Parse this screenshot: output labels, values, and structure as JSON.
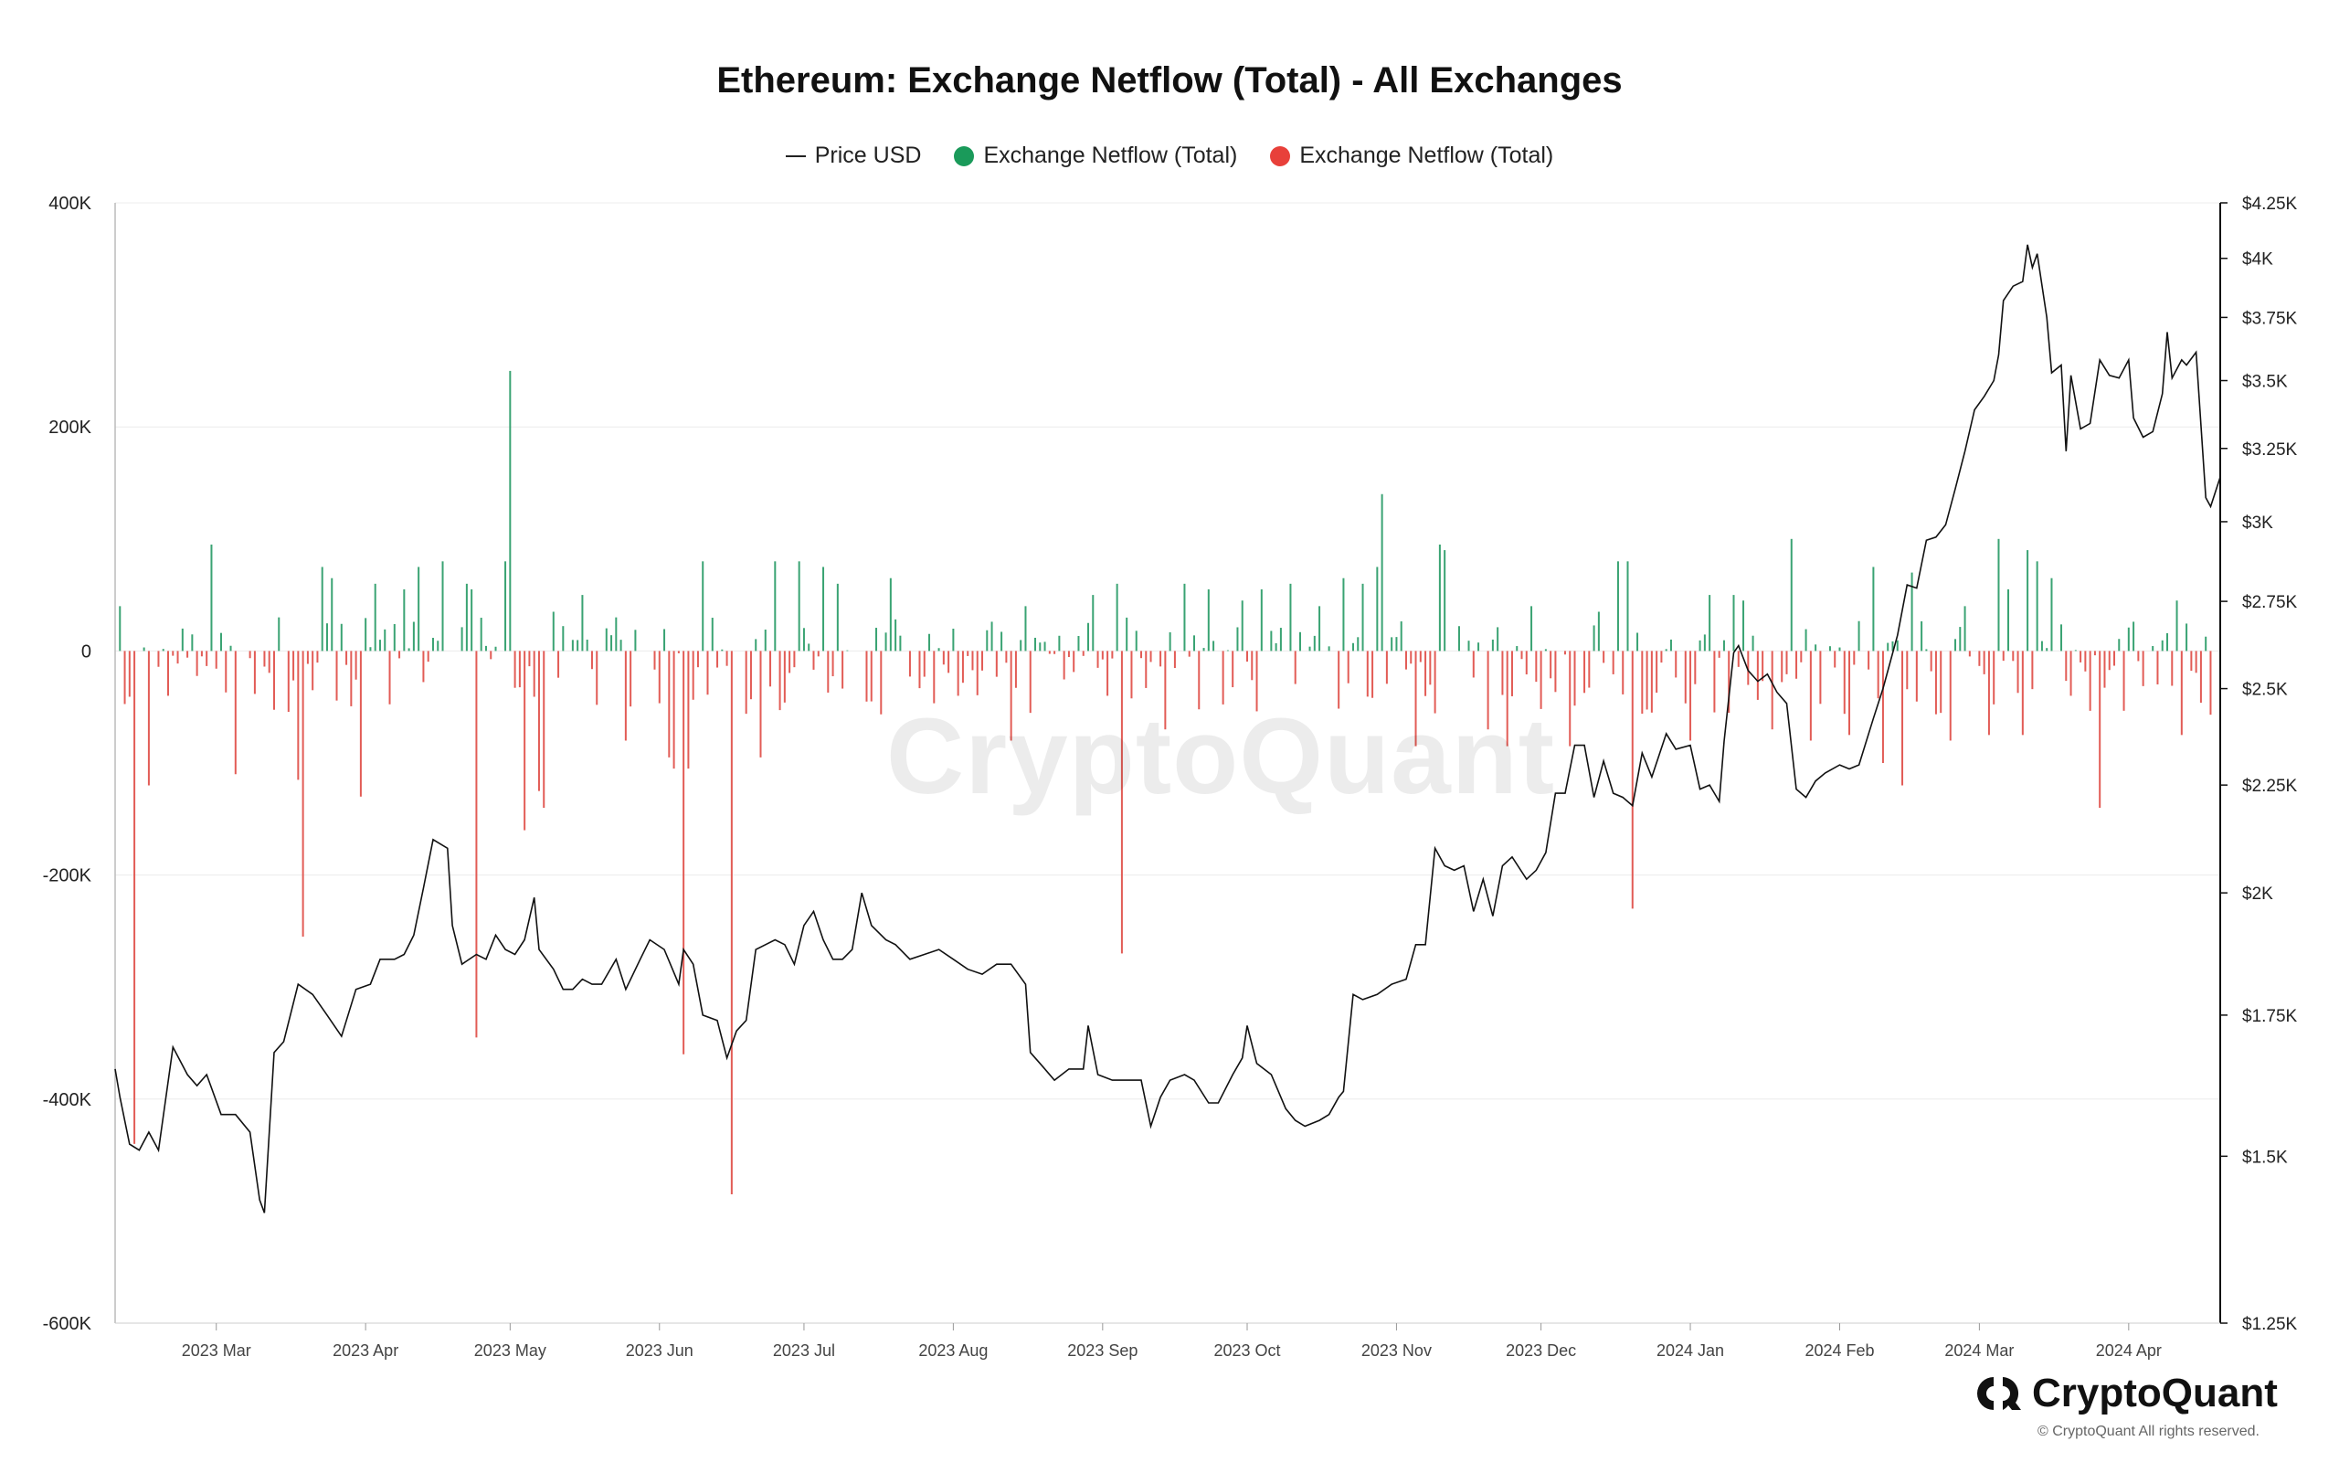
{
  "chart_data": {
    "type": "line+bar",
    "title": "Ethereum: Exchange Netflow (Total) - All Exchanges",
    "legend": [
      {
        "name": "Price USD",
        "kind": "line",
        "color": "#222222"
      },
      {
        "name": "Exchange Netflow (Total)",
        "kind": "dot",
        "color": "#1a9a5a"
      },
      {
        "name": "Exchange Netflow (Total)",
        "kind": "dot",
        "color": "#e8403a"
      }
    ],
    "colors": {
      "inflow": "#3aa373",
      "outflow": "#e25c56",
      "price": "#111111"
    },
    "left_axis": {
      "min": -600000,
      "max": 400000,
      "ticks": [
        {
          "v": 400000,
          "label": "400K"
        },
        {
          "v": 200000,
          "label": "200K"
        },
        {
          "v": 0,
          "label": "0"
        },
        {
          "v": -200000,
          "label": "-200K"
        },
        {
          "v": -400000,
          "label": "-400K"
        },
        {
          "v": -600000,
          "label": "-600K"
        }
      ]
    },
    "right_axis": {
      "scale": "log",
      "min": 1250,
      "max": 4250,
      "ticks": [
        {
          "v": 4250,
          "label": "$4.25K"
        },
        {
          "v": 4000,
          "label": "$4K"
        },
        {
          "v": 3750,
          "label": "$3.75K"
        },
        {
          "v": 3500,
          "label": "$3.5K"
        },
        {
          "v": 3250,
          "label": "$3.25K"
        },
        {
          "v": 3000,
          "label": "$3K"
        },
        {
          "v": 2750,
          "label": "$2.75K"
        },
        {
          "v": 2500,
          "label": "$2.5K"
        },
        {
          "v": 2250,
          "label": "$2.25K"
        },
        {
          "v": 2000,
          "label": "$2K"
        },
        {
          "v": 1750,
          "label": "$1.75K"
        },
        {
          "v": 1500,
          "label": "$1.5K"
        },
        {
          "v": 1250,
          "label": "$1.25K"
        }
      ]
    },
    "x_axis": {
      "start": "2023-02-08",
      "end": "2024-04-20",
      "ticks": [
        {
          "date": "2023-03-01",
          "label": "2023 Mar"
        },
        {
          "date": "2023-04-01",
          "label": "2023 Apr"
        },
        {
          "date": "2023-05-01",
          "label": "2023 May"
        },
        {
          "date": "2023-06-01",
          "label": "2023 Jun"
        },
        {
          "date": "2023-07-01",
          "label": "2023 Jul"
        },
        {
          "date": "2023-08-01",
          "label": "2023 Aug"
        },
        {
          "date": "2023-09-01",
          "label": "2023 Sep"
        },
        {
          "date": "2023-10-01",
          "label": "2023 Oct"
        },
        {
          "date": "2023-11-01",
          "label": "2023 Nov"
        },
        {
          "date": "2023-12-01",
          "label": "2023 Dec"
        },
        {
          "date": "2024-01-01",
          "label": "2024 Jan"
        },
        {
          "date": "2024-02-01",
          "label": "2024 Feb"
        },
        {
          "date": "2024-03-01",
          "label": "2024 Mar"
        },
        {
          "date": "2024-04-01",
          "label": "2024 Apr"
        }
      ]
    },
    "grid": true,
    "price_usd": [
      [
        "2023-02-08",
        1650
      ],
      [
        "2023-02-09",
        1600
      ],
      [
        "2023-02-11",
        1520
      ],
      [
        "2023-02-13",
        1510
      ],
      [
        "2023-02-15",
        1540
      ],
      [
        "2023-02-17",
        1510
      ],
      [
        "2023-02-20",
        1690
      ],
      [
        "2023-02-23",
        1640
      ],
      [
        "2023-02-25",
        1620
      ],
      [
        "2023-02-27",
        1640
      ],
      [
        "2023-03-02",
        1570
      ],
      [
        "2023-03-05",
        1570
      ],
      [
        "2023-03-08",
        1540
      ],
      [
        "2023-03-10",
        1430
      ],
      [
        "2023-03-11",
        1410
      ],
      [
        "2023-03-13",
        1680
      ],
      [
        "2023-03-15",
        1700
      ],
      [
        "2023-03-18",
        1810
      ],
      [
        "2023-03-21",
        1790
      ],
      [
        "2023-03-24",
        1750
      ],
      [
        "2023-03-27",
        1710
      ],
      [
        "2023-03-30",
        1800
      ],
      [
        "2023-04-02",
        1810
      ],
      [
        "2023-04-04",
        1860
      ],
      [
        "2023-04-07",
        1860
      ],
      [
        "2023-04-09",
        1870
      ],
      [
        "2023-04-11",
        1910
      ],
      [
        "2023-04-13",
        2010
      ],
      [
        "2023-04-15",
        2120
      ],
      [
        "2023-04-18",
        2100
      ],
      [
        "2023-04-19",
        1930
      ],
      [
        "2023-04-21",
        1850
      ],
      [
        "2023-04-24",
        1870
      ],
      [
        "2023-04-26",
        1860
      ],
      [
        "2023-04-28",
        1910
      ],
      [
        "2023-04-30",
        1880
      ],
      [
        "2023-05-02",
        1870
      ],
      [
        "2023-05-04",
        1900
      ],
      [
        "2023-05-06",
        1990
      ],
      [
        "2023-05-07",
        1880
      ],
      [
        "2023-05-10",
        1840
      ],
      [
        "2023-05-12",
        1800
      ],
      [
        "2023-05-14",
        1800
      ],
      [
        "2023-05-16",
        1820
      ],
      [
        "2023-05-18",
        1810
      ],
      [
        "2023-05-20",
        1810
      ],
      [
        "2023-05-23",
        1860
      ],
      [
        "2023-05-25",
        1800
      ],
      [
        "2023-05-28",
        1860
      ],
      [
        "2023-05-30",
        1900
      ],
      [
        "2023-06-02",
        1880
      ],
      [
        "2023-06-05",
        1810
      ],
      [
        "2023-06-06",
        1880
      ],
      [
        "2023-06-08",
        1850
      ],
      [
        "2023-06-10",
        1750
      ],
      [
        "2023-06-13",
        1740
      ],
      [
        "2023-06-15",
        1670
      ],
      [
        "2023-06-17",
        1720
      ],
      [
        "2023-06-19",
        1740
      ],
      [
        "2023-06-21",
        1880
      ],
      [
        "2023-06-23",
        1890
      ],
      [
        "2023-06-25",
        1900
      ],
      [
        "2023-06-27",
        1890
      ],
      [
        "2023-06-29",
        1850
      ],
      [
        "2023-07-01",
        1930
      ],
      [
        "2023-07-03",
        1960
      ],
      [
        "2023-07-05",
        1900
      ],
      [
        "2023-07-07",
        1860
      ],
      [
        "2023-07-09",
        1860
      ],
      [
        "2023-07-11",
        1880
      ],
      [
        "2023-07-13",
        2000
      ],
      [
        "2023-07-15",
        1930
      ],
      [
        "2023-07-18",
        1900
      ],
      [
        "2023-07-20",
        1890
      ],
      [
        "2023-07-23",
        1860
      ],
      [
        "2023-07-26",
        1870
      ],
      [
        "2023-07-29",
        1880
      ],
      [
        "2023-08-01",
        1860
      ],
      [
        "2023-08-04",
        1840
      ],
      [
        "2023-08-07",
        1830
      ],
      [
        "2023-08-10",
        1850
      ],
      [
        "2023-08-13",
        1850
      ],
      [
        "2023-08-16",
        1810
      ],
      [
        "2023-08-17",
        1680
      ],
      [
        "2023-08-19",
        1660
      ],
      [
        "2023-08-22",
        1630
      ],
      [
        "2023-08-25",
        1650
      ],
      [
        "2023-08-28",
        1650
      ],
      [
        "2023-08-29",
        1730
      ],
      [
        "2023-08-31",
        1640
      ],
      [
        "2023-09-03",
        1630
      ],
      [
        "2023-09-06",
        1630
      ],
      [
        "2023-09-09",
        1630
      ],
      [
        "2023-09-11",
        1550
      ],
      [
        "2023-09-13",
        1600
      ],
      [
        "2023-09-15",
        1630
      ],
      [
        "2023-09-18",
        1640
      ],
      [
        "2023-09-20",
        1630
      ],
      [
        "2023-09-23",
        1590
      ],
      [
        "2023-09-25",
        1590
      ],
      [
        "2023-09-28",
        1640
      ],
      [
        "2023-09-30",
        1670
      ],
      [
        "2023-10-01",
        1730
      ],
      [
        "2023-10-03",
        1660
      ],
      [
        "2023-10-06",
        1640
      ],
      [
        "2023-10-09",
        1580
      ],
      [
        "2023-10-11",
        1560
      ],
      [
        "2023-10-13",
        1550
      ],
      [
        "2023-10-16",
        1560
      ],
      [
        "2023-10-18",
        1570
      ],
      [
        "2023-10-20",
        1600
      ],
      [
        "2023-10-21",
        1610
      ],
      [
        "2023-10-23",
        1790
      ],
      [
        "2023-10-25",
        1780
      ],
      [
        "2023-10-28",
        1790
      ],
      [
        "2023-10-31",
        1810
      ],
      [
        "2023-11-03",
        1820
      ],
      [
        "2023-11-05",
        1890
      ],
      [
        "2023-11-07",
        1890
      ],
      [
        "2023-11-09",
        2100
      ],
      [
        "2023-11-11",
        2060
      ],
      [
        "2023-11-13",
        2050
      ],
      [
        "2023-11-15",
        2060
      ],
      [
        "2023-11-17",
        1960
      ],
      [
        "2023-11-19",
        2030
      ],
      [
        "2023-11-21",
        1950
      ],
      [
        "2023-11-23",
        2060
      ],
      [
        "2023-11-25",
        2080
      ],
      [
        "2023-11-28",
        2030
      ],
      [
        "2023-11-30",
        2050
      ],
      [
        "2023-12-02",
        2090
      ],
      [
        "2023-12-04",
        2230
      ],
      [
        "2023-12-06",
        2230
      ],
      [
        "2023-12-08",
        2350
      ],
      [
        "2023-12-10",
        2350
      ],
      [
        "2023-12-12",
        2220
      ],
      [
        "2023-12-14",
        2310
      ],
      [
        "2023-12-16",
        2230
      ],
      [
        "2023-12-18",
        2220
      ],
      [
        "2023-12-20",
        2200
      ],
      [
        "2023-12-22",
        2330
      ],
      [
        "2023-12-24",
        2270
      ],
      [
        "2023-12-27",
        2380
      ],
      [
        "2023-12-29",
        2340
      ],
      [
        "2024-01-01",
        2350
      ],
      [
        "2024-01-03",
        2240
      ],
      [
        "2024-01-05",
        2250
      ],
      [
        "2024-01-07",
        2210
      ],
      [
        "2024-01-08",
        2360
      ],
      [
        "2024-01-10",
        2600
      ],
      [
        "2024-01-11",
        2620
      ],
      [
        "2024-01-13",
        2550
      ],
      [
        "2024-01-15",
        2520
      ],
      [
        "2024-01-17",
        2540
      ],
      [
        "2024-01-19",
        2490
      ],
      [
        "2024-01-21",
        2460
      ],
      [
        "2024-01-23",
        2240
      ],
      [
        "2024-01-25",
        2220
      ],
      [
        "2024-01-27",
        2260
      ],
      [
        "2024-01-29",
        2280
      ],
      [
        "2024-02-01",
        2300
      ],
      [
        "2024-02-03",
        2290
      ],
      [
        "2024-02-05",
        2300
      ],
      [
        "2024-02-08",
        2420
      ],
      [
        "2024-02-10",
        2500
      ],
      [
        "2024-02-13",
        2650
      ],
      [
        "2024-02-15",
        2800
      ],
      [
        "2024-02-17",
        2790
      ],
      [
        "2024-02-19",
        2940
      ],
      [
        "2024-02-21",
        2950
      ],
      [
        "2024-02-23",
        2990
      ],
      [
        "2024-02-25",
        3110
      ],
      [
        "2024-02-27",
        3240
      ],
      [
        "2024-02-29",
        3390
      ],
      [
        "2024-03-02",
        3440
      ],
      [
        "2024-03-04",
        3500
      ],
      [
        "2024-03-05",
        3600
      ],
      [
        "2024-03-06",
        3820
      ],
      [
        "2024-03-08",
        3880
      ],
      [
        "2024-03-10",
        3900
      ],
      [
        "2024-03-11",
        4060
      ],
      [
        "2024-03-12",
        3960
      ],
      [
        "2024-03-13",
        4020
      ],
      [
        "2024-03-15",
        3750
      ],
      [
        "2024-03-16",
        3530
      ],
      [
        "2024-03-18",
        3560
      ],
      [
        "2024-03-19",
        3240
      ],
      [
        "2024-03-20",
        3520
      ],
      [
        "2024-03-22",
        3320
      ],
      [
        "2024-03-24",
        3340
      ],
      [
        "2024-03-26",
        3580
      ],
      [
        "2024-03-28",
        3520
      ],
      [
        "2024-03-30",
        3510
      ],
      [
        "2024-04-01",
        3580
      ],
      [
        "2024-04-02",
        3360
      ],
      [
        "2024-04-04",
        3290
      ],
      [
        "2024-04-06",
        3310
      ],
      [
        "2024-04-08",
        3450
      ],
      [
        "2024-04-09",
        3690
      ],
      [
        "2024-04-10",
        3510
      ],
      [
        "2024-04-12",
        3580
      ],
      [
        "2024-04-13",
        3560
      ],
      [
        "2024-04-15",
        3610
      ],
      [
        "2024-04-17",
        3080
      ],
      [
        "2024-04-18",
        3050
      ],
      [
        "2024-04-20",
        3150
      ]
    ],
    "netflow_seed": 20240420,
    "netflow_spikes": [
      [
        "2023-02-09",
        40000
      ],
      [
        "2023-02-12",
        -440000
      ],
      [
        "2023-02-15",
        -120000
      ],
      [
        "2023-02-22",
        20000
      ],
      [
        "2023-02-28",
        95000
      ],
      [
        "2023-03-05",
        -110000
      ],
      [
        "2023-03-14",
        30000
      ],
      [
        "2023-03-18",
        -115000
      ],
      [
        "2023-03-19",
        -255000
      ],
      [
        "2023-03-23",
        75000
      ],
      [
        "2023-03-25",
        65000
      ],
      [
        "2023-03-31",
        -130000
      ],
      [
        "2023-04-03",
        60000
      ],
      [
        "2023-04-09",
        55000
      ],
      [
        "2023-04-12",
        75000
      ],
      [
        "2023-04-17",
        80000
      ],
      [
        "2023-04-22",
        60000
      ],
      [
        "2023-04-23",
        55000
      ],
      [
        "2023-04-24",
        -345000
      ],
      [
        "2023-04-30",
        80000
      ],
      [
        "2023-05-01",
        250000
      ],
      [
        "2023-05-04",
        -160000
      ],
      [
        "2023-05-07",
        -125000
      ],
      [
        "2023-05-08",
        -140000
      ],
      [
        "2023-05-10",
        35000
      ],
      [
        "2023-05-16",
        50000
      ],
      [
        "2023-05-25",
        -80000
      ],
      [
        "2023-06-03",
        -95000
      ],
      [
        "2023-06-04",
        -105000
      ],
      [
        "2023-06-06",
        -360000
      ],
      [
        "2023-06-07",
        -105000
      ],
      [
        "2023-06-10",
        80000
      ],
      [
        "2023-06-16",
        -485000
      ],
      [
        "2023-06-22",
        -95000
      ],
      [
        "2023-06-25",
        80000
      ],
      [
        "2023-06-30",
        80000
      ],
      [
        "2023-07-05",
        75000
      ],
      [
        "2023-07-08",
        60000
      ],
      [
        "2023-07-15",
        -45000
      ],
      [
        "2023-07-19",
        65000
      ],
      [
        "2023-08-02",
        -40000
      ],
      [
        "2023-08-13",
        -80000
      ],
      [
        "2023-08-16",
        40000
      ],
      [
        "2023-08-29",
        25000
      ],
      [
        "2023-08-30",
        50000
      ],
      [
        "2023-09-02",
        -40000
      ],
      [
        "2023-09-04",
        60000
      ],
      [
        "2023-09-05",
        -270000
      ],
      [
        "2023-09-14",
        -70000
      ],
      [
        "2023-09-18",
        60000
      ],
      [
        "2023-09-23",
        55000
      ],
      [
        "2023-09-30",
        45000
      ],
      [
        "2023-10-04",
        55000
      ],
      [
        "2023-10-10",
        60000
      ],
      [
        "2023-10-16",
        40000
      ],
      [
        "2023-10-21",
        65000
      ],
      [
        "2023-10-25",
        60000
      ],
      [
        "2023-10-28",
        75000
      ],
      [
        "2023-10-29",
        140000
      ],
      [
        "2023-11-05",
        -85000
      ],
      [
        "2023-11-10",
        95000
      ],
      [
        "2023-11-11",
        90000
      ],
      [
        "2023-11-20",
        -70000
      ],
      [
        "2023-11-24",
        -85000
      ],
      [
        "2023-11-29",
        40000
      ],
      [
        "2023-12-07",
        -85000
      ],
      [
        "2023-12-13",
        35000
      ],
      [
        "2023-12-17",
        80000
      ],
      [
        "2023-12-19",
        80000
      ],
      [
        "2023-12-20",
        -230000
      ],
      [
        "2023-12-24",
        -55000
      ],
      [
        "2024-01-01",
        -80000
      ],
      [
        "2024-01-05",
        50000
      ],
      [
        "2024-01-10",
        50000
      ],
      [
        "2024-01-12",
        45000
      ],
      [
        "2024-01-18",
        -70000
      ],
      [
        "2024-01-22",
        100000
      ],
      [
        "2024-01-26",
        -80000
      ],
      [
        "2024-02-03",
        -75000
      ],
      [
        "2024-02-08",
        75000
      ],
      [
        "2024-02-10",
        -100000
      ],
      [
        "2024-02-14",
        -120000
      ],
      [
        "2024-02-16",
        70000
      ],
      [
        "2024-02-24",
        -80000
      ],
      [
        "2024-02-27",
        40000
      ],
      [
        "2024-03-03",
        -75000
      ],
      [
        "2024-03-05",
        100000
      ],
      [
        "2024-03-07",
        55000
      ],
      [
        "2024-03-10",
        -75000
      ],
      [
        "2024-03-11",
        90000
      ],
      [
        "2024-03-13",
        80000
      ],
      [
        "2024-03-16",
        65000
      ],
      [
        "2024-03-20",
        -40000
      ],
      [
        "2024-03-26",
        -140000
      ],
      [
        "2024-04-11",
        45000
      ],
      [
        "2024-04-12",
        -75000
      ]
    ]
  },
  "watermark": "CryptoQuant",
  "brand": {
    "name": "CryptoQuant",
    "copyright": "© CryptoQuant All rights reserved."
  }
}
